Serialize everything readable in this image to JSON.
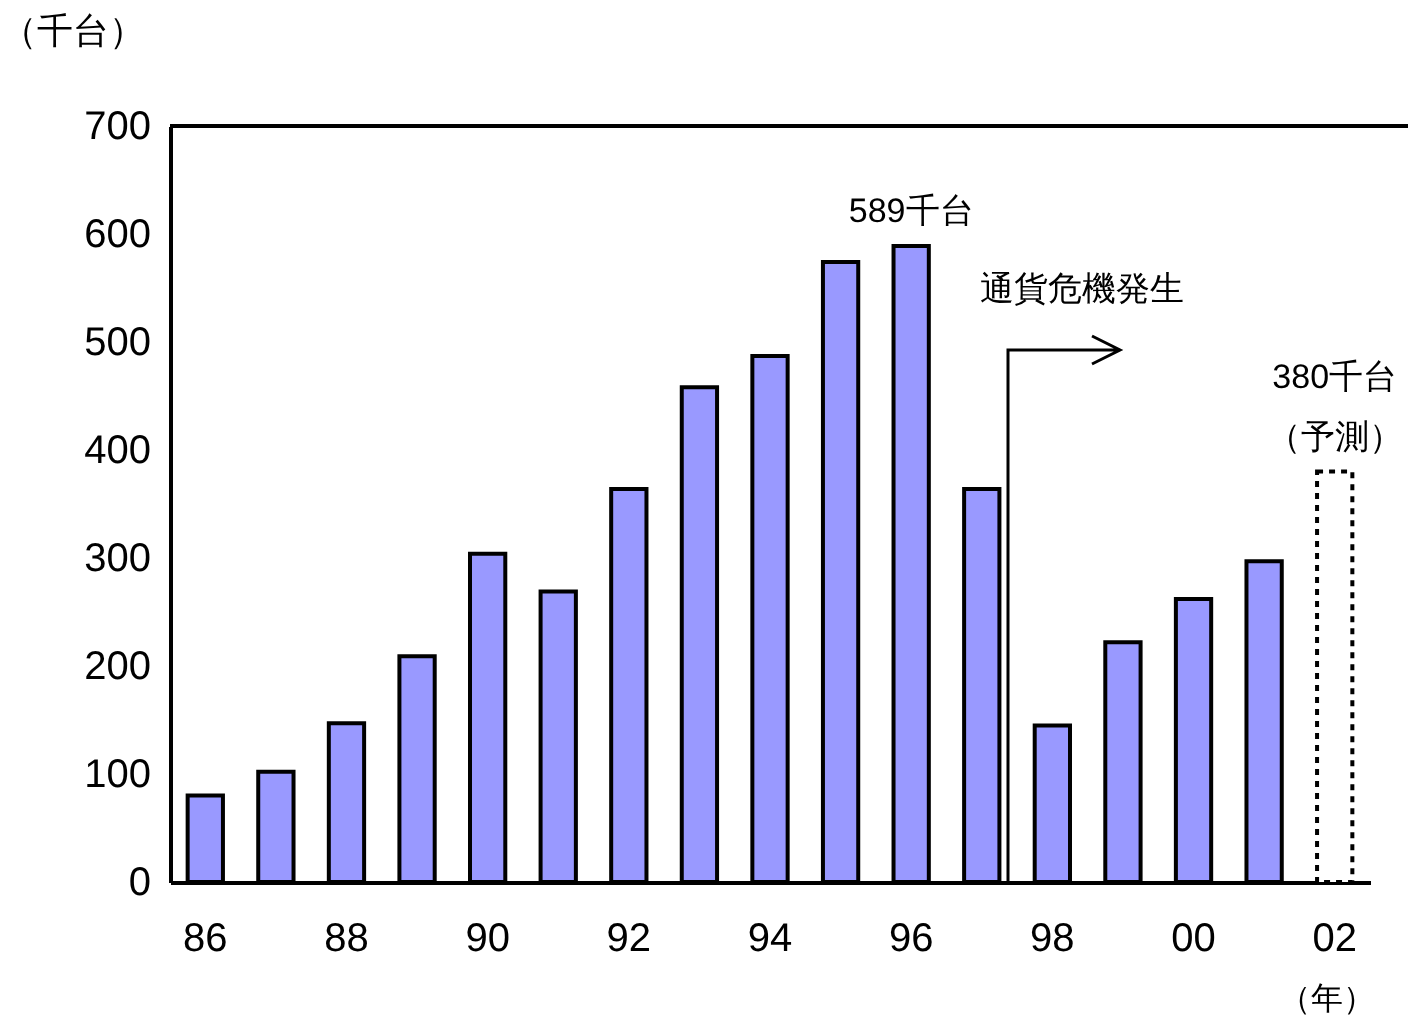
{
  "chart_data": {
    "type": "bar",
    "ylabel": "（千台）",
    "xlabel": "（年）",
    "categories": [
      "86",
      null,
      "88",
      null,
      "90",
      null,
      "92",
      null,
      "94",
      null,
      "96",
      null,
      "98",
      null,
      "00",
      null,
      "02"
    ],
    "series": [
      {
        "color": "#9999ff",
        "values": [
          80,
          102,
          147,
          209,
          304,
          269,
          364,
          458,
          487,
          574,
          589,
          364,
          145,
          222,
          262,
          297,
          null
        ]
      },
      {
        "color": "#ffffff",
        "line_style": "dotted",
        "values": [
          null,
          null,
          null,
          null,
          null,
          null,
          null,
          null,
          null,
          null,
          null,
          null,
          null,
          null,
          null,
          null,
          380
        ]
      }
    ],
    "ylim": [
      0,
      700
    ],
    "yticks": [
      0,
      100,
      200,
      300,
      400,
      500,
      600,
      700
    ],
    "annotations": [
      {
        "text": "589千台",
        "x": "96",
        "y": 589
      },
      "通貨危機発生",
      {
        "text": "380千台",
        "x": "02",
        "y": 380
      },
      {
        "text": "（予測）",
        "x": "02",
        "y": 380
      }
    ]
  }
}
